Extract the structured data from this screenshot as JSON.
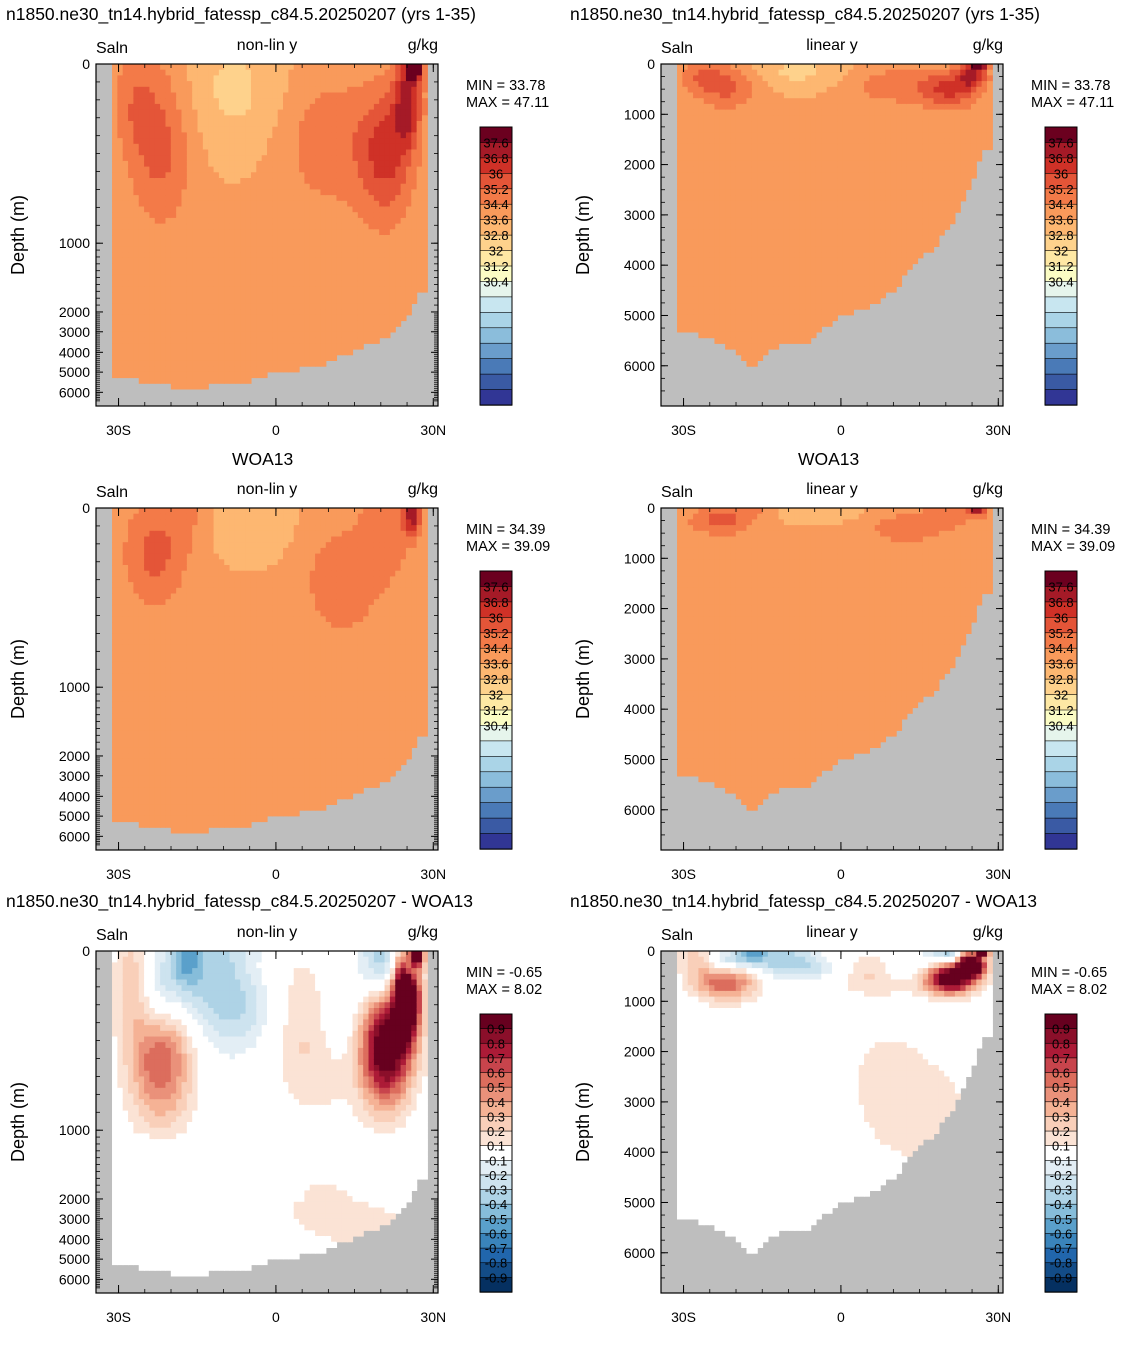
{
  "row_titles": [
    {
      "left": "n1850.ne30_tn14.hybrid_fatessp_c84.5.20250207 (yrs 1-35)",
      "right": "n1850.ne30_tn14.hybrid_fatessp_c84.5.20250207 (yrs 1-35)"
    },
    {
      "left": "WOA13",
      "right": "WOA13"
    },
    {
      "left": "n1850.ne30_tn14.hybrid_fatessp_c84.5.20250207 - WOA13",
      "right": "n1850.ne30_tn14.hybrid_fatessp_c84.5.20250207 - WOA13"
    }
  ],
  "colors": {
    "land": "#bebebe",
    "abs_palette": [
      "#313695",
      "#3a5aa4",
      "#4a7ab7",
      "#6a9dcb",
      "#8bbddb",
      "#aad4e7",
      "#c8e6f0",
      "#e6f5ec",
      "#fbfcc4",
      "#fee8a4",
      "#fed28c",
      "#fdb771",
      "#f99a5b",
      "#f37a48",
      "#e45538",
      "#cf3127",
      "#a51a27",
      "#6b001f"
    ],
    "diff_palette": [
      "#053061",
      "#134c87",
      "#2166ac",
      "#3a84bb",
      "#5aa0cb",
      "#86bdda",
      "#aed3e6",
      "#cde3ef",
      "#e3eef5",
      "#ffffff",
      "#fbe3d5",
      "#f9cfb9",
      "#f5b295",
      "#ea917a",
      "#dc6d5d",
      "#c8444c",
      "#ac1b37",
      "#8b0f2a",
      "#67001f"
    ]
  },
  "chart_data": [
    {
      "type": "heatmap",
      "row": 1,
      "col": 1,
      "variable": "Saln",
      "y_scale": "non-lin y",
      "units": "g/kg",
      "ylabel": "Depth (m)",
      "x_ticks": [
        "30S",
        "0",
        "30N"
      ],
      "y_ticks": [
        "0",
        "1000",
        "2000",
        "3000",
        "4000",
        "5000",
        "6000"
      ],
      "min_label": "MIN =  33.78",
      "max_label": "MAX =  47.11",
      "min": 33.78,
      "max": 47.11,
      "colorbar_labels": [
        "37.6",
        "36.8",
        "36",
        "35.2",
        "34.4",
        "33.6",
        "32.8",
        "32",
        "31.2",
        "30.4"
      ]
    },
    {
      "type": "heatmap",
      "row": 1,
      "col": 2,
      "variable": "Saln",
      "y_scale": "linear y",
      "units": "g/kg",
      "ylabel": "Depth (m)",
      "x_ticks": [
        "30S",
        "0",
        "30N"
      ],
      "y_ticks": [
        "0",
        "1000",
        "2000",
        "3000",
        "4000",
        "5000",
        "6000"
      ],
      "min_label": "MIN =  33.78",
      "max_label": "MAX =  47.11",
      "min": 33.78,
      "max": 47.11,
      "colorbar_labels": [
        "37.6",
        "36.8",
        "36",
        "35.2",
        "34.4",
        "33.6",
        "32.8",
        "32",
        "31.2",
        "30.4"
      ]
    },
    {
      "type": "heatmap",
      "row": 2,
      "col": 1,
      "variable": "Saln",
      "y_scale": "non-lin y",
      "units": "g/kg",
      "ylabel": "Depth (m)",
      "x_ticks": [
        "30S",
        "0",
        "30N"
      ],
      "y_ticks": [
        "0",
        "1000",
        "2000",
        "3000",
        "4000",
        "5000",
        "6000"
      ],
      "min_label": "MIN =  34.39",
      "max_label": "MAX =  39.09",
      "min": 34.39,
      "max": 39.09,
      "colorbar_labels": [
        "37.6",
        "36.8",
        "36",
        "35.2",
        "34.4",
        "33.6",
        "32.8",
        "32",
        "31.2",
        "30.4"
      ]
    },
    {
      "type": "heatmap",
      "row": 2,
      "col": 2,
      "variable": "Saln",
      "y_scale": "linear y",
      "units": "g/kg",
      "ylabel": "Depth (m)",
      "x_ticks": [
        "30S",
        "0",
        "30N"
      ],
      "y_ticks": [
        "0",
        "1000",
        "2000",
        "3000",
        "4000",
        "5000",
        "6000"
      ],
      "min_label": "MIN =  34.39",
      "max_label": "MAX =  39.09",
      "min": 34.39,
      "max": 39.09,
      "colorbar_labels": [
        "37.6",
        "36.8",
        "36",
        "35.2",
        "34.4",
        "33.6",
        "32.8",
        "32",
        "31.2",
        "30.4"
      ]
    },
    {
      "type": "heatmap",
      "row": 3,
      "col": 1,
      "variable": "Saln",
      "y_scale": "non-lin y",
      "units": "g/kg",
      "ylabel": "Depth (m)",
      "x_ticks": [
        "30S",
        "0",
        "30N"
      ],
      "y_ticks": [
        "0",
        "1000",
        "2000",
        "3000",
        "4000",
        "5000",
        "6000"
      ],
      "min_label": "MIN =  -0.65",
      "max_label": "MAX =   8.02",
      "min": -0.65,
      "max": 8.02,
      "colorbar_labels": [
        "0.9",
        "0.8",
        "0.7",
        "0.6",
        "0.5",
        "0.4",
        "0.3",
        "0.2",
        "0.1",
        "-0.1",
        "-0.2",
        "-0.3",
        "-0.4",
        "-0.5",
        "-0.6",
        "-0.7",
        "-0.8",
        "-0.9"
      ]
    },
    {
      "type": "heatmap",
      "row": 3,
      "col": 2,
      "variable": "Saln",
      "y_scale": "linear y",
      "units": "g/kg",
      "ylabel": "Depth (m)",
      "x_ticks": [
        "30S",
        "0",
        "30N"
      ],
      "y_ticks": [
        "0",
        "1000",
        "2000",
        "3000",
        "4000",
        "5000",
        "6000"
      ],
      "min_label": "MIN =  -0.65",
      "max_label": "MAX =   8.02",
      "min": -0.65,
      "max": 8.02,
      "colorbar_labels": [
        "0.9",
        "0.8",
        "0.7",
        "0.6",
        "0.5",
        "0.4",
        "0.3",
        "0.2",
        "0.1",
        "-0.1",
        "-0.2",
        "-0.3",
        "-0.4",
        "-0.5",
        "-0.6",
        "-0.7",
        "-0.8",
        "-0.9"
      ]
    }
  ]
}
